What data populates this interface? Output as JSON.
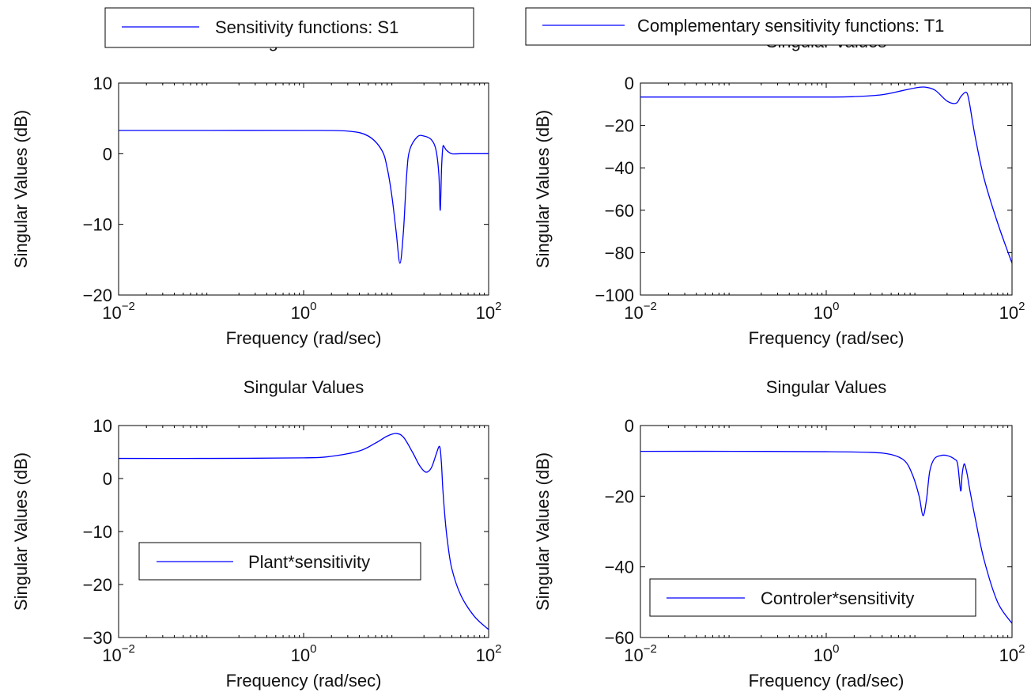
{
  "chart_data": [
    {
      "type": "line",
      "title": "Singular Values",
      "xlabel": "Frequency (rad/sec)",
      "ylabel": "Singular Values (dB)",
      "xscale": "log",
      "xlim": [
        0.01,
        100
      ],
      "ylim": [
        -20,
        10
      ],
      "xticks": [
        {
          "value": 0.01,
          "base": "10",
          "exp": "−2"
        },
        {
          "value": 1,
          "base": "10",
          "exp": "0"
        },
        {
          "value": 100,
          "base": "10",
          "exp": "2"
        }
      ],
      "yticks": [
        {
          "value": 10,
          "label": "10"
        },
        {
          "value": 0,
          "label": "0"
        },
        {
          "value": -10,
          "label": "−10"
        },
        {
          "value": -20,
          "label": "−20"
        }
      ],
      "legend": {
        "position": "top-left",
        "entries": [
          "Sensitivity functions: S1"
        ]
      },
      "series": [
        {
          "name": "Sensitivity functions: S1",
          "color": "#0000ff",
          "x": [
            0.01,
            0.1,
            1,
            3,
            5,
            7,
            8,
            9,
            10,
            11,
            12,
            13,
            14,
            17,
            20,
            24,
            27,
            29,
            30,
            31,
            32,
            33,
            35,
            40,
            50,
            100
          ],
          "y": [
            3.3,
            3.3,
            3.3,
            3.2,
            2.5,
            0.5,
            -2,
            -6,
            -11,
            -15.5,
            -11,
            -3,
            0.5,
            2.4,
            2.5,
            2.0,
            0.5,
            -3,
            -8,
            -2,
            0.9,
            1.0,
            0.5,
            0,
            0,
            0
          ]
        }
      ]
    },
    {
      "type": "line",
      "title": "Singular Values",
      "xlabel": "Frequency (rad/sec)",
      "ylabel": "Singular Values (dB)",
      "xscale": "log",
      "xlim": [
        0.01,
        100
      ],
      "ylim": [
        -100,
        0
      ],
      "xticks": [
        {
          "value": 0.01,
          "base": "10",
          "exp": "−2"
        },
        {
          "value": 1,
          "base": "10",
          "exp": "0"
        },
        {
          "value": 100,
          "base": "10",
          "exp": "2"
        }
      ],
      "yticks": [
        {
          "value": 0,
          "label": "0"
        },
        {
          "value": -20,
          "label": "−20"
        },
        {
          "value": -40,
          "label": "−40"
        },
        {
          "value": -60,
          "label": "−60"
        },
        {
          "value": -80,
          "label": "−80"
        },
        {
          "value": -100,
          "label": "−100"
        }
      ],
      "legend": {
        "position": "top-left",
        "entries": [
          "Complementary sensitivity functions: T1"
        ]
      },
      "series": [
        {
          "name": "Complementary sensitivity functions: T1",
          "color": "#0000ff",
          "x": [
            0.01,
            0.1,
            1,
            2,
            4,
            7,
            10,
            12,
            15,
            20,
            25,
            28,
            31,
            33,
            35,
            40,
            50,
            70,
            100
          ],
          "y": [
            -6.6,
            -6.6,
            -6.6,
            -6.4,
            -5.5,
            -3.3,
            -2.0,
            -2.0,
            -3.5,
            -8.5,
            -9.5,
            -6.5,
            -4.5,
            -5,
            -10,
            -25,
            -45,
            -66,
            -85
          ]
        }
      ]
    },
    {
      "type": "line",
      "title": "Singular Values",
      "xlabel": "Frequency (rad/sec)",
      "ylabel": "Singular Values (dB)",
      "xscale": "log",
      "xlim": [
        0.01,
        100
      ],
      "ylim": [
        -30,
        10
      ],
      "xticks": [
        {
          "value": 0.01,
          "base": "10",
          "exp": "−2"
        },
        {
          "value": 1,
          "base": "10",
          "exp": "0"
        },
        {
          "value": 100,
          "base": "10",
          "exp": "2"
        }
      ],
      "yticks": [
        {
          "value": 10,
          "label": "10"
        },
        {
          "value": 0,
          "label": "0"
        },
        {
          "value": -10,
          "label": "−10"
        },
        {
          "value": -20,
          "label": "−20"
        },
        {
          "value": -30,
          "label": "−30"
        }
      ],
      "legend": {
        "position": "middle-left",
        "entries": [
          "Plant*sensitivity"
        ]
      },
      "series": [
        {
          "name": "Plant*sensitivity",
          "color": "#0000ff",
          "x": [
            0.01,
            0.1,
            1,
            2,
            4,
            6,
            8,
            10,
            12,
            15,
            18,
            21,
            24,
            27,
            29,
            30,
            31,
            32,
            34,
            36,
            40,
            50,
            70,
            100
          ],
          "y": [
            3.8,
            3.8,
            3.9,
            4.2,
            5.2,
            6.7,
            8.0,
            8.5,
            7.8,
            5.0,
            2.4,
            1.2,
            2.0,
            4.5,
            6.0,
            5.5,
            2.5,
            -2,
            -8,
            -12,
            -17,
            -22,
            -26,
            -28.5
          ]
        }
      ]
    },
    {
      "type": "line",
      "title": "Singular Values",
      "xlabel": "Frequency (rad/sec)",
      "ylabel": "Singular Values (dB)",
      "xscale": "log",
      "xlim": [
        0.01,
        100
      ],
      "ylim": [
        -60,
        0
      ],
      "xticks": [
        {
          "value": 0.01,
          "base": "10",
          "exp": "−2"
        },
        {
          "value": 1,
          "base": "10",
          "exp": "0"
        },
        {
          "value": 100,
          "base": "10",
          "exp": "2"
        }
      ],
      "yticks": [
        {
          "value": 0,
          "label": "0"
        },
        {
          "value": -20,
          "label": "−20"
        },
        {
          "value": -40,
          "label": "−40"
        },
        {
          "value": -60,
          "label": "−60"
        }
      ],
      "legend": {
        "position": "bottom-left",
        "entries": [
          "Controler*sensitivity"
        ]
      },
      "series": [
        {
          "name": "Controler*sensitivity",
          "color": "#0000ff",
          "x": [
            0.01,
            0.1,
            1,
            3,
            5,
            7,
            8.5,
            10,
            11,
            12,
            13,
            14.5,
            17,
            20,
            24,
            26,
            28,
            29,
            30,
            31,
            33,
            35,
            40,
            50,
            70,
            100
          ],
          "y": [
            -7.3,
            -7.3,
            -7.4,
            -7.6,
            -8.2,
            -10,
            -14,
            -20,
            -25.5,
            -21,
            -13,
            -9.5,
            -8.5,
            -8.5,
            -9.5,
            -11,
            -18.5,
            -14,
            -11.5,
            -11,
            -14,
            -18,
            -26,
            -38,
            -50,
            -56
          ]
        }
      ]
    }
  ]
}
